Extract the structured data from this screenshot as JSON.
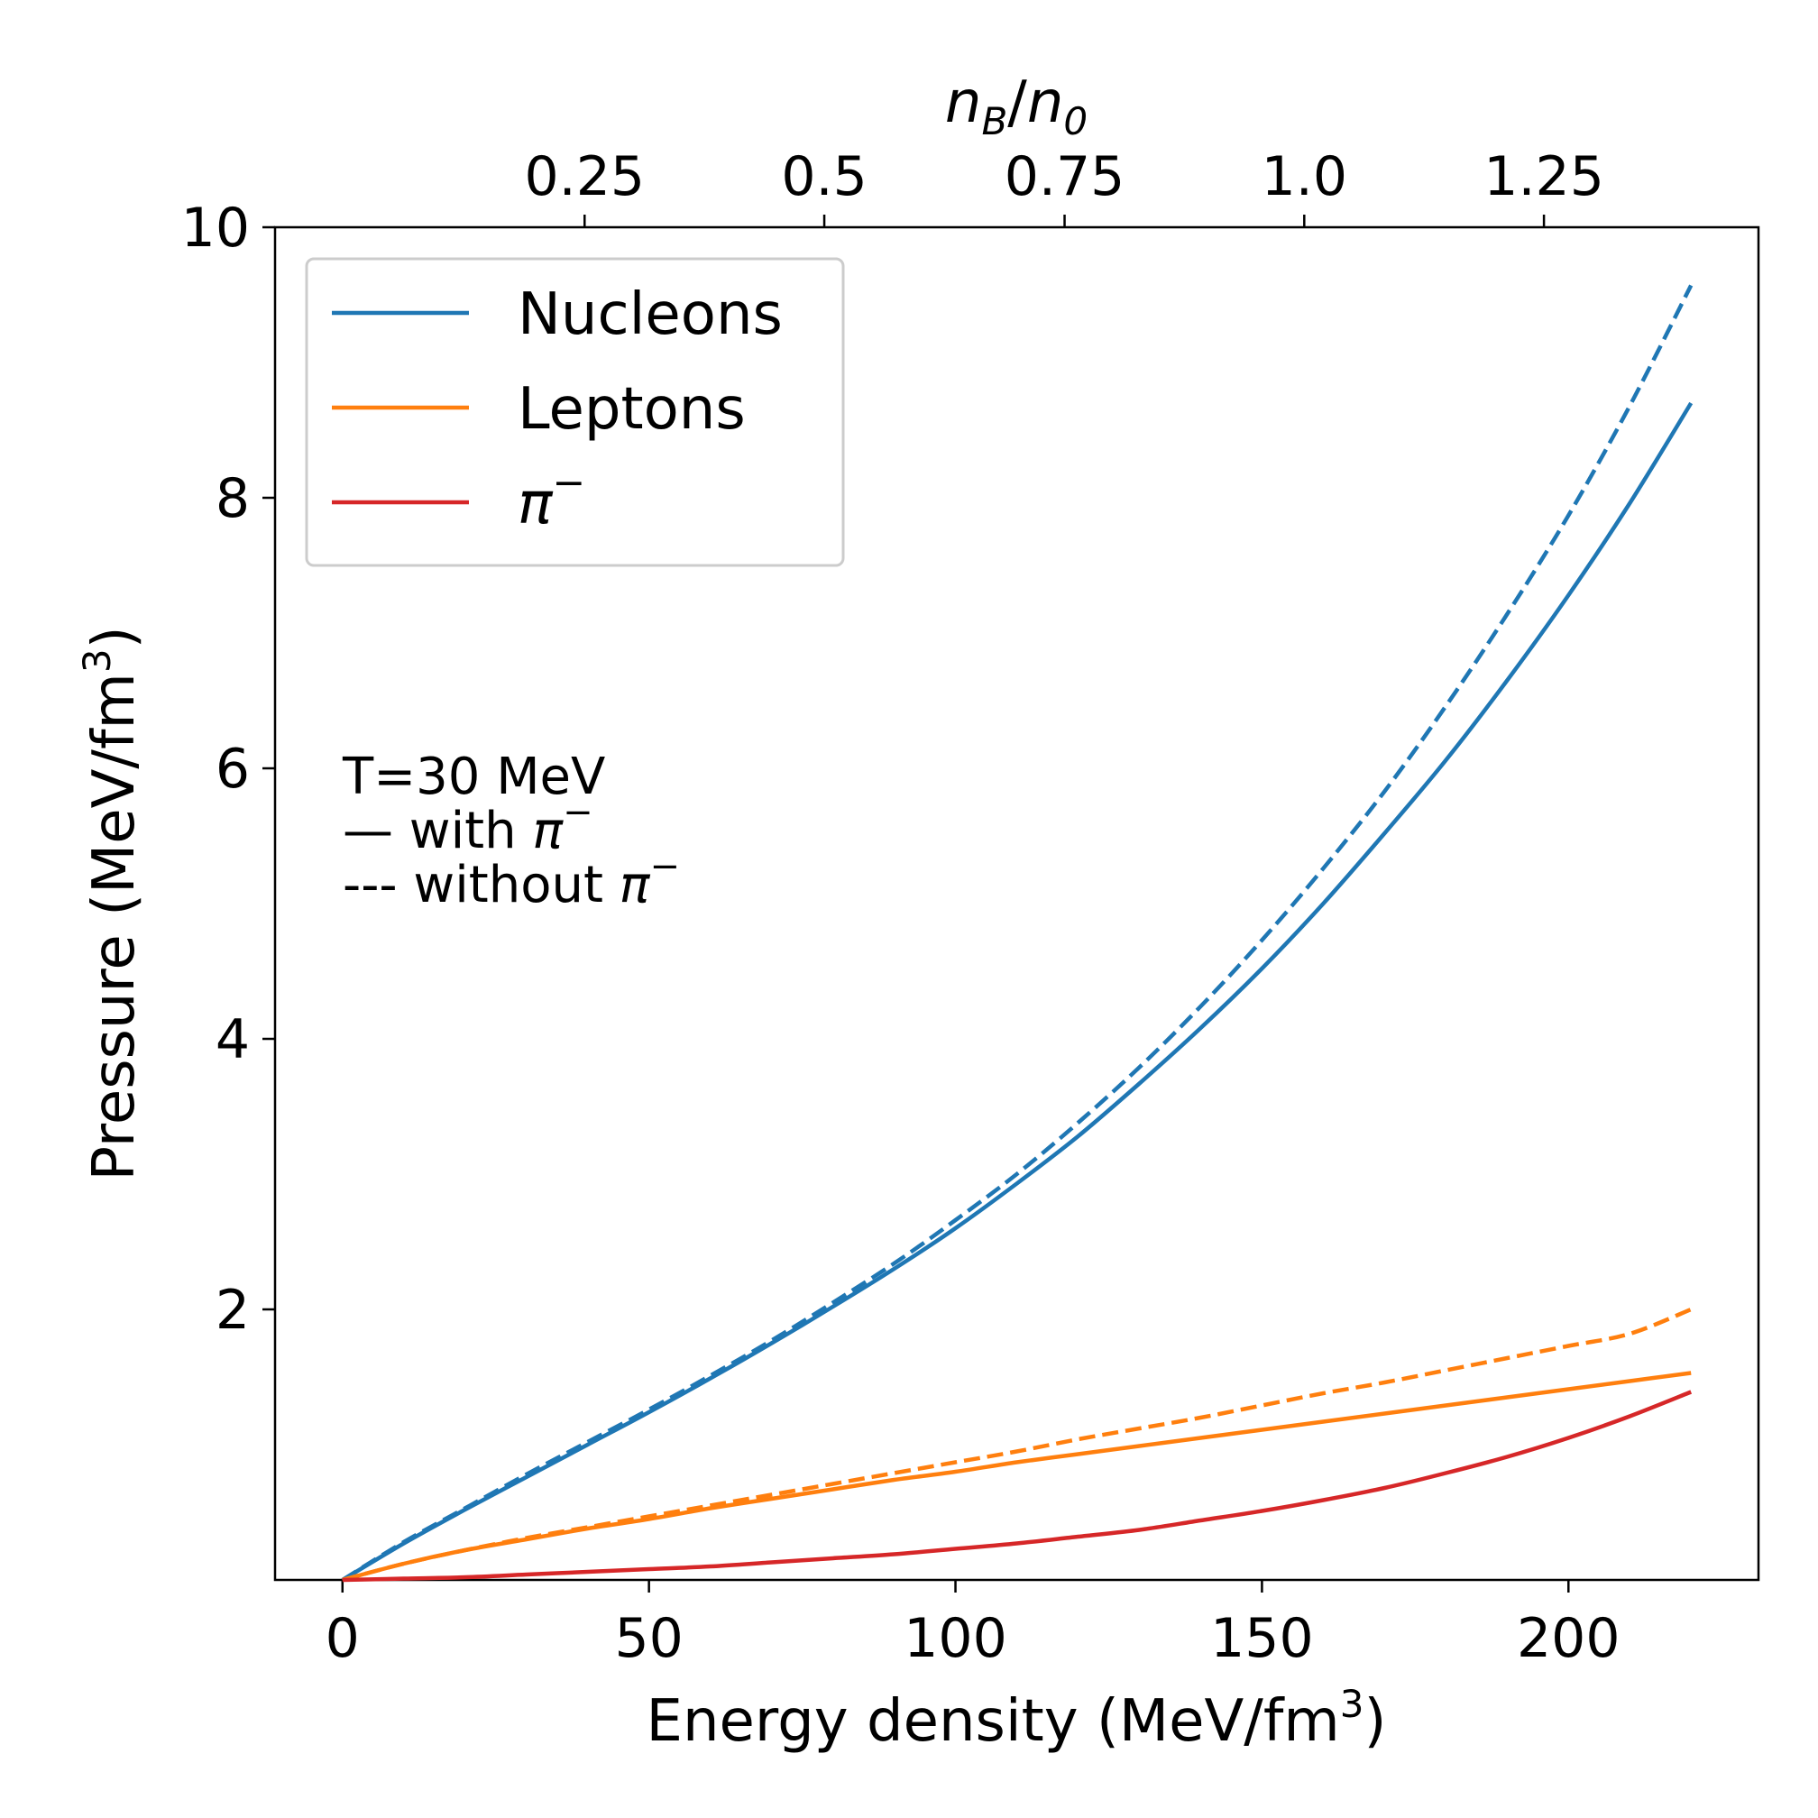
{
  "chart_data": {
    "type": "line",
    "xlabel_main": "Energy density (MeV/fm",
    "xlabel_sup": "3",
    "xlabel_close": ")",
    "ylabel_main": "Pressure (MeV/fm",
    "ylabel_sup": "3",
    "ylabel_close": ")",
    "top_axis_label_n": "n",
    "top_axis_label_sub_B": "B",
    "top_axis_label_sub_0": "0",
    "top_axis_label_slash": "/",
    "xlim": [
      -11,
      231
    ],
    "ylim": [
      0,
      10
    ],
    "x_ticks": [
      0,
      50,
      100,
      150,
      200
    ],
    "x_tick_labels": [
      "0",
      "50",
      "100",
      "150",
      "200"
    ],
    "y_ticks": [
      2,
      4,
      6,
      8,
      10
    ],
    "y_tick_labels": [
      "2",
      "4",
      "6",
      "8",
      "10"
    ],
    "top_ticks": [
      0.25,
      0.5,
      0.75,
      1.0,
      1.25
    ],
    "top_tick_labels": [
      "0.25",
      "0.5",
      "0.75",
      "1.0",
      "1.25"
    ],
    "top_tick_x_positions": [
      39.5,
      78.6,
      117.8,
      156.9,
      196.0
    ],
    "legend": {
      "position": "top-left",
      "entries": [
        {
          "label": "Nucleons",
          "color": "#1f77b4"
        },
        {
          "label": "Leptons",
          "color": "#ff7f0e"
        },
        {
          "label": "π",
          "sup": "−",
          "color": "#d62728"
        }
      ]
    },
    "annotation": {
      "line1": "T=30 MeV",
      "line2_prefix": "— with ",
      "line3_prefix": "--- without ",
      "pi": "π",
      "pi_sup": "−"
    },
    "x": [
      0,
      10,
      20,
      30,
      40,
      50,
      60,
      70,
      80,
      90,
      100,
      110,
      120,
      130,
      140,
      150,
      160,
      170,
      180,
      190,
      200,
      210,
      220
    ],
    "series": [
      {
        "name": "Nucleons (with π−)",
        "color": "#1f77b4",
        "dash": false,
        "values": [
          0,
          0.27,
          0.52,
          0.76,
          1.0,
          1.24,
          1.49,
          1.75,
          2.02,
          2.3,
          2.6,
          2.93,
          3.28,
          3.67,
          4.08,
          4.52,
          5.0,
          5.52,
          6.06,
          6.65,
          7.28,
          7.96,
          8.7
        ]
      },
      {
        "name": "Nucleons (without π−)",
        "color": "#1f77b4",
        "dash": true,
        "values": [
          0,
          0.28,
          0.53,
          0.78,
          1.02,
          1.26,
          1.51,
          1.77,
          2.05,
          2.34,
          2.66,
          3.0,
          3.38,
          3.79,
          4.24,
          4.73,
          5.26,
          5.83,
          6.46,
          7.14,
          7.87,
          8.68,
          9.57
        ]
      },
      {
        "name": "Leptons (with π−)",
        "color": "#ff7f0e",
        "dash": false,
        "values": [
          0,
          0.12,
          0.22,
          0.3,
          0.38,
          0.45,
          0.53,
          0.6,
          0.67,
          0.74,
          0.8,
          0.87,
          0.93,
          0.99,
          1.05,
          1.11,
          1.17,
          1.23,
          1.29,
          1.35,
          1.41,
          1.47,
          1.53
        ]
      },
      {
        "name": "Leptons (without π−)",
        "color": "#ff7f0e",
        "dash": true,
        "values": [
          0,
          0.12,
          0.22,
          0.31,
          0.39,
          0.47,
          0.55,
          0.63,
          0.71,
          0.79,
          0.87,
          0.95,
          1.04,
          1.12,
          1.2,
          1.29,
          1.38,
          1.46,
          1.55,
          1.64,
          1.73,
          1.82,
          2.0
        ]
      },
      {
        "name": "π−",
        "color": "#d62728",
        "dash": false,
        "values": [
          0,
          0.01,
          0.02,
          0.04,
          0.06,
          0.08,
          0.1,
          0.13,
          0.16,
          0.19,
          0.23,
          0.27,
          0.32,
          0.37,
          0.44,
          0.51,
          0.59,
          0.68,
          0.79,
          0.91,
          1.05,
          1.21,
          1.39
        ]
      }
    ]
  }
}
